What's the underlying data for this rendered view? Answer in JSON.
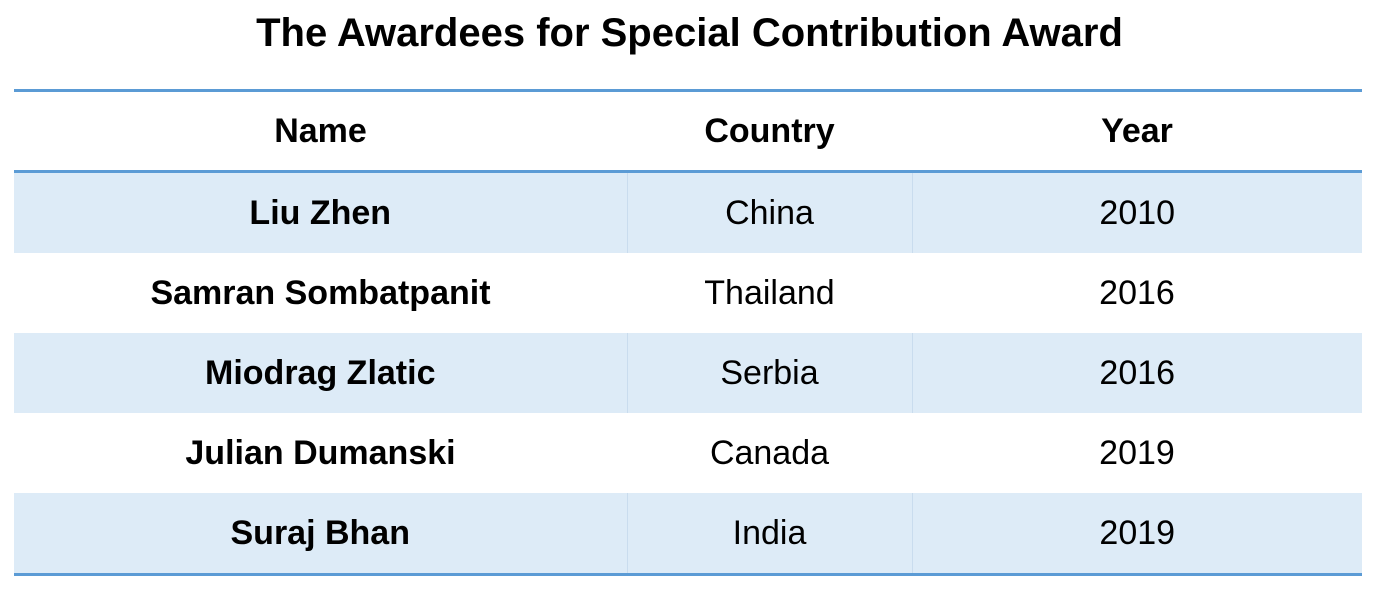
{
  "title": "The Awardees for Special Contribution Award",
  "table": {
    "header": [
      "Name",
      "Country",
      "Year"
    ],
    "rows": [
      [
        "Liu Zhen",
        "China",
        2010
      ],
      [
        "Samran Sombatpanit",
        "Thailand",
        2016
      ],
      [
        "Miodrag Zlatic",
        "Serbia",
        2016
      ],
      [
        "Julian Dumanski",
        "Canada",
        2019
      ],
      [
        "Suraj Bhan",
        "India",
        2019
      ]
    ]
  }
}
